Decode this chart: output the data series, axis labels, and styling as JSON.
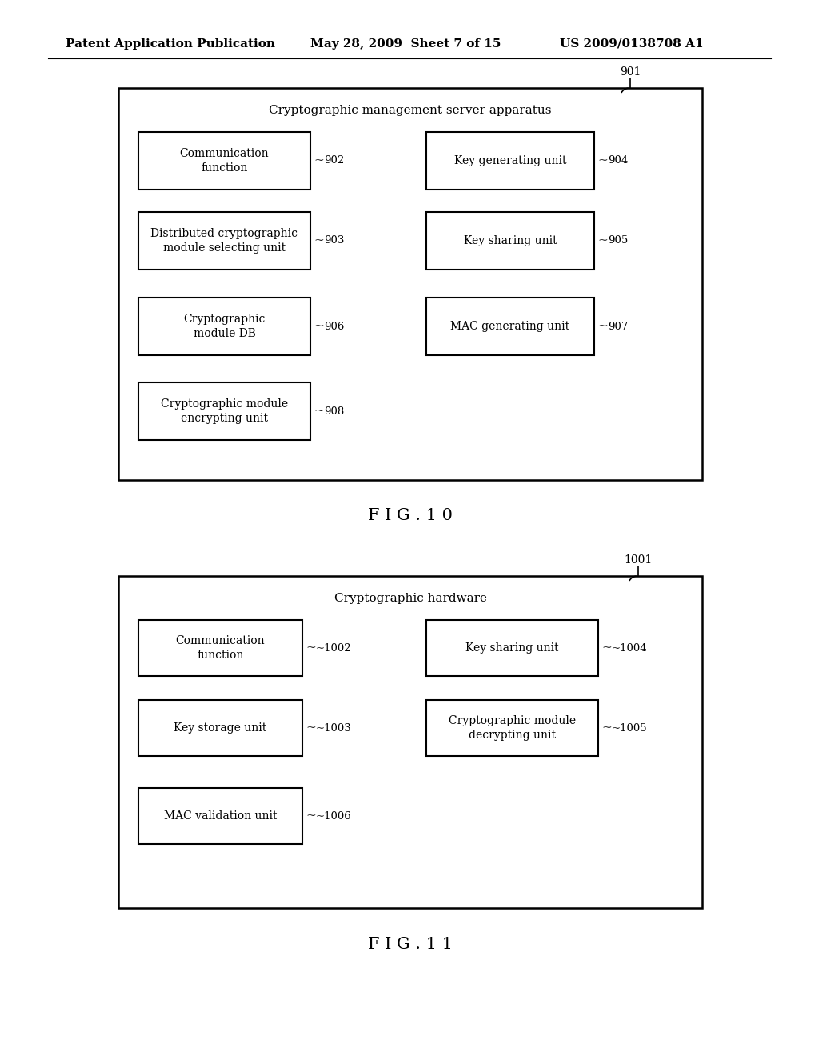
{
  "bg_color": "#ffffff",
  "header_text": "Patent Application Publication",
  "header_date": "May 28, 2009  Sheet 7 of 15",
  "header_patent": "US 2009/0138708 A1",
  "fig10_label": "F I G . 1 0",
  "fig11_label": "F I G . 1 1",
  "fig10_container_title": "Cryptographic management server apparatus",
  "fig10_ref": "901",
  "fig11_container_title": "Cryptographic hardware",
  "fig11_ref": "1001",
  "fig10_boxes_left": [
    {
      "label": "Communication\nfunction",
      "ref": "902",
      "row": 0
    },
    {
      "label": "Distributed cryptographic\nmodule selecting unit",
      "ref": "903",
      "row": 1
    },
    {
      "label": "Cryptographic\nmodule DB",
      "ref": "906",
      "row": 2
    },
    {
      "label": "Cryptographic module\nencrypting unit",
      "ref": "908",
      "row": 3
    }
  ],
  "fig10_boxes_right": [
    {
      "label": "Key generating unit",
      "ref": "904",
      "row": 0
    },
    {
      "label": "Key sharing unit",
      "ref": "905",
      "row": 1
    },
    {
      "label": "MAC generating unit",
      "ref": "907",
      "row": 2
    }
  ],
  "fig11_boxes_left": [
    {
      "label": "Communication\nfunction",
      "ref": "~1002",
      "row": 0
    },
    {
      "label": "Key storage unit",
      "ref": "~1003",
      "row": 1
    },
    {
      "label": "MAC validation unit",
      "ref": "~1006",
      "row": 2
    }
  ],
  "fig11_boxes_right": [
    {
      "label": "Key sharing unit",
      "ref": "~1004",
      "row": 0
    },
    {
      "label": "Cryptographic module\ndecrypting unit",
      "ref": "~1005",
      "row": 1
    }
  ]
}
